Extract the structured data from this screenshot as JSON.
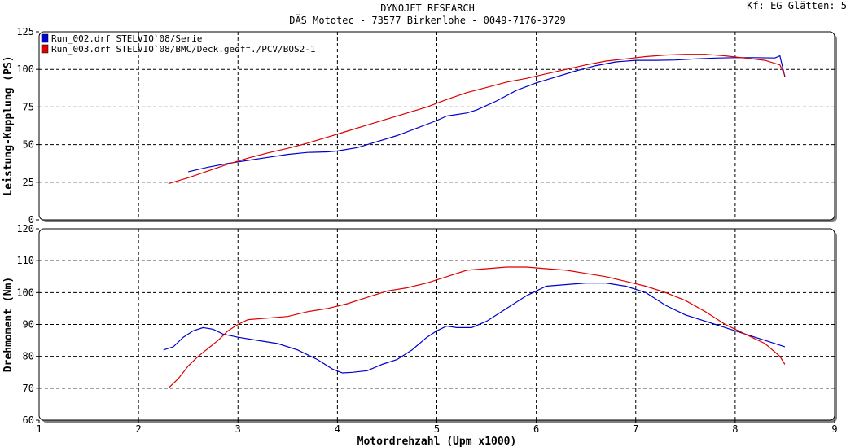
{
  "header": {
    "title": "DYNOJET RESEARCH",
    "subtitle": "DÄS Mototec - 73577 Birkenlohe  - 0049-7176-3729",
    "corner": "Kf: EG  Glätten: 5"
  },
  "colors": {
    "run002": "#0000cc",
    "run003": "#dd0000",
    "grid": "#000000",
    "panel_shadow": "#808080"
  },
  "chart_data": [
    {
      "type": "line",
      "ylabel": "Leistung-Kupplung (PS)",
      "xlim": [
        1,
        9
      ],
      "ylim": [
        0,
        125
      ],
      "yticks": [
        0,
        25,
        50,
        75,
        100,
        125
      ],
      "grid": true,
      "legend_position": "top-left",
      "series": [
        {
          "name": "Run_002.drf STELVIO`08/Serie",
          "color": "#0000cc",
          "x": [
            2.5,
            2.7,
            2.9,
            3.1,
            3.3,
            3.5,
            3.7,
            3.9,
            4.0,
            4.2,
            4.4,
            4.6,
            4.8,
            5.0,
            5.1,
            5.3,
            5.4,
            5.6,
            5.8,
            6.0,
            6.2,
            6.4,
            6.6,
            6.8,
            7.0,
            7.2,
            7.4,
            7.6,
            7.8,
            8.0,
            8.2,
            8.4,
            8.45,
            8.5
          ],
          "values": [
            32,
            35,
            37.5,
            39.5,
            41.5,
            43.5,
            44.8,
            45.2,
            45.8,
            48,
            52,
            56,
            61,
            66,
            69,
            71,
            73,
            79,
            86,
            91,
            95,
            99,
            102.5,
            105,
            106,
            106,
            106.2,
            107,
            107.5,
            107.8,
            107.8,
            107.6,
            109,
            95
          ]
        },
        {
          "name": "Run_003.drf STELVIO`08/BMC/Deck.geöff./PCV/BOS2-1",
          "color": "#dd0000",
          "x": [
            2.3,
            2.5,
            2.7,
            2.9,
            3.1,
            3.3,
            3.5,
            3.7,
            3.9,
            4.1,
            4.3,
            4.5,
            4.7,
            4.9,
            5.1,
            5.3,
            5.5,
            5.7,
            5.9,
            6.1,
            6.3,
            6.5,
            6.7,
            6.9,
            7.1,
            7.3,
            7.5,
            7.7,
            7.9,
            8.1,
            8.3,
            8.45,
            8.5
          ],
          "values": [
            24,
            28,
            32.5,
            37,
            41,
            44.5,
            47.5,
            51,
            55,
            59,
            63,
            67,
            71,
            75,
            80,
            84.5,
            88,
            91.5,
            94,
            97,
            100,
            103,
            105.5,
            107,
            108.5,
            109.5,
            110,
            110,
            109,
            107.5,
            106,
            103,
            96
          ]
        }
      ]
    },
    {
      "type": "line",
      "ylabel": "Drehmoment (Nm)",
      "xlabel": "Motordrehzahl (Upm x1000)",
      "xlim": [
        1,
        9
      ],
      "ylim": [
        60,
        120
      ],
      "xticks": [
        1,
        2,
        3,
        4,
        5,
        6,
        7,
        8,
        9
      ],
      "yticks": [
        60,
        70,
        80,
        90,
        100,
        110,
        120
      ],
      "grid": true,
      "series": [
        {
          "name": "Run_002.drf STELVIO`08/Serie",
          "color": "#0000cc",
          "x": [
            2.25,
            2.35,
            2.45,
            2.55,
            2.65,
            2.75,
            2.85,
            3.0,
            3.2,
            3.4,
            3.6,
            3.8,
            3.95,
            4.05,
            4.15,
            4.3,
            4.45,
            4.6,
            4.75,
            4.9,
            5.0,
            5.1,
            5.2,
            5.35,
            5.5,
            5.7,
            5.9,
            6.1,
            6.3,
            6.5,
            6.7,
            6.9,
            7.1,
            7.3,
            7.5,
            7.7,
            7.9,
            8.1,
            8.3,
            8.5
          ],
          "values": [
            82,
            83,
            86,
            88,
            89,
            88.5,
            87,
            86,
            85,
            84,
            82,
            79,
            76,
            74.8,
            75,
            75.5,
            77.5,
            79,
            82,
            86,
            88,
            89.5,
            89,
            89,
            91,
            95,
            99,
            102,
            102.5,
            103,
            103,
            102,
            100,
            96,
            93,
            91,
            89,
            87,
            85,
            83
          ]
        },
        {
          "name": "Run_003.drf STELVIO`08/BMC/Deck.geöff./PCV/BOS2-1",
          "color": "#dd0000",
          "x": [
            2.3,
            2.4,
            2.5,
            2.6,
            2.7,
            2.8,
            2.9,
            3.0,
            3.1,
            3.3,
            3.5,
            3.7,
            3.9,
            4.1,
            4.3,
            4.5,
            4.7,
            4.9,
            5.1,
            5.3,
            5.5,
            5.7,
            5.9,
            6.1,
            6.3,
            6.5,
            6.7,
            6.9,
            7.1,
            7.3,
            7.5,
            7.7,
            7.9,
            8.1,
            8.3,
            8.45,
            8.5
          ],
          "values": [
            70,
            73,
            77,
            80,
            82.5,
            85,
            88,
            90,
            91.5,
            92,
            92.5,
            94,
            95,
            96.5,
            98.5,
            100.5,
            101.5,
            103,
            105,
            107,
            107.5,
            108,
            108,
            107.5,
            107,
            106,
            105,
            103.5,
            102,
            100,
            97.5,
            94,
            90,
            87,
            84,
            80,
            77.5
          ]
        }
      ]
    }
  ]
}
